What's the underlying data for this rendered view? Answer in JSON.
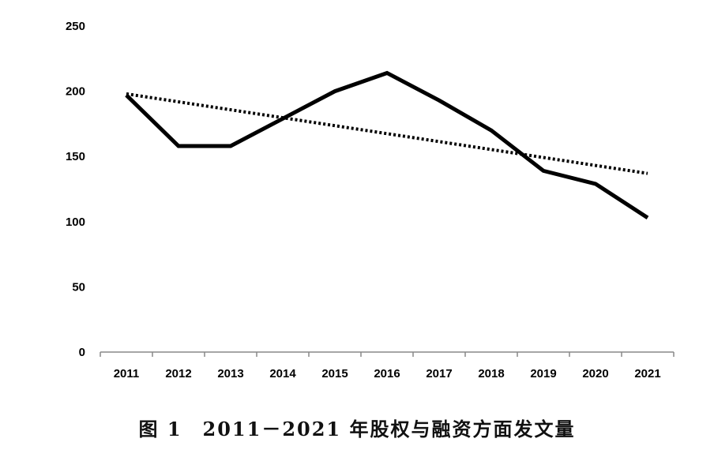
{
  "chart_data": {
    "type": "line",
    "title": "",
    "xlabel": "",
    "ylabel": "",
    "categories": [
      "2011",
      "2012",
      "2013",
      "2014",
      "2015",
      "2016",
      "2017",
      "2018",
      "2019",
      "2020",
      "2021"
    ],
    "series": [
      {
        "values": [
          197,
          158,
          158,
          179,
          200,
          214,
          193,
          170,
          139,
          129,
          103
        ],
        "color": "#000000",
        "style": "solid"
      }
    ],
    "trendline": {
      "type": "linear",
      "start": 198,
      "end": 137,
      "color": "#000000",
      "style": "dotted"
    },
    "ylim": [
      0,
      250
    ],
    "yticks": [
      0,
      50,
      100,
      150,
      200,
      250
    ],
    "grid": false,
    "legend": "none"
  },
  "caption": "图 1　2011－2021 年股权与融资方面发文量"
}
